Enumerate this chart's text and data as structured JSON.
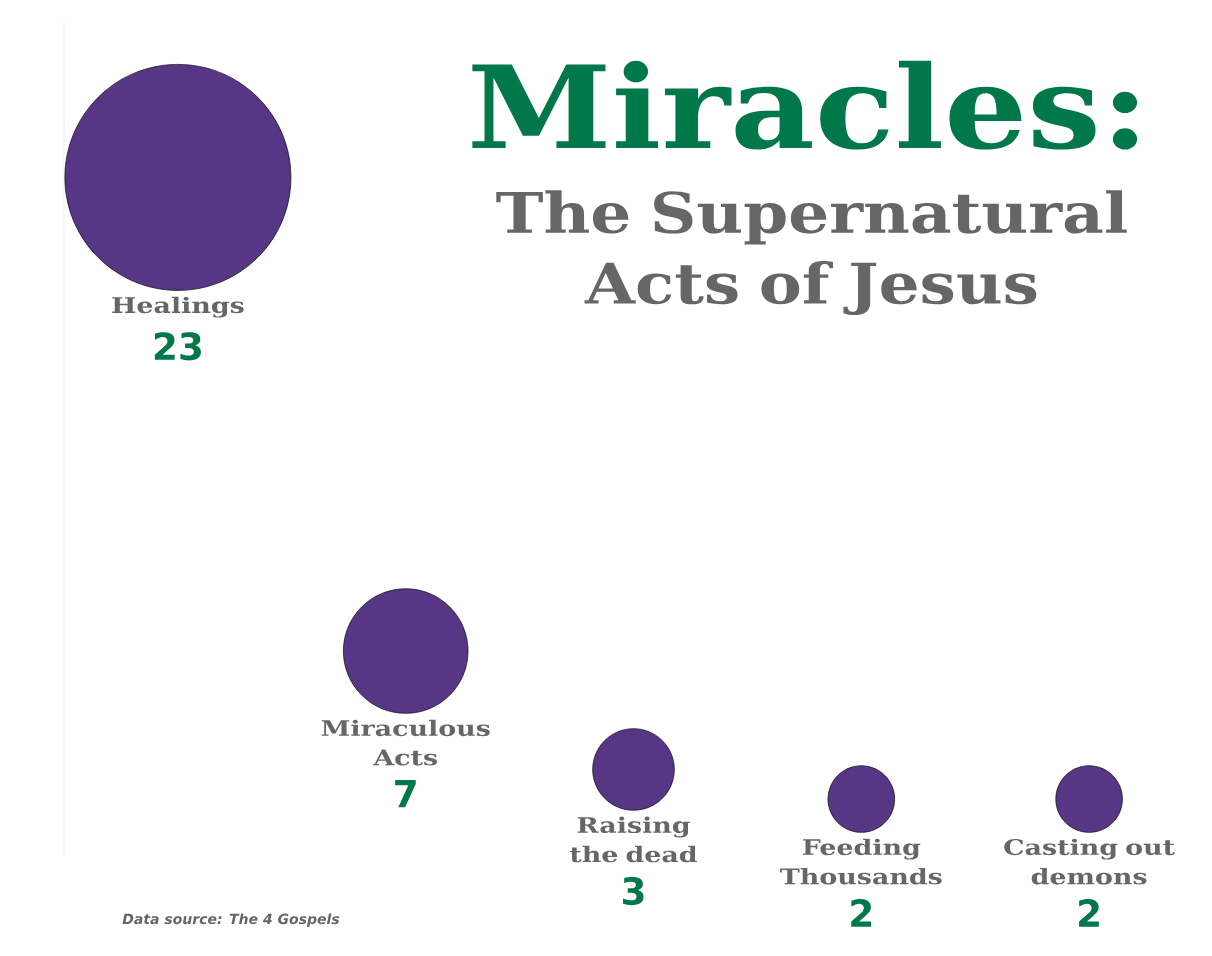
{
  "chart_data": {
    "type": "other",
    "title": "Miracles:",
    "subtitle": "The Supernatural Acts of Jesus",
    "categories": [
      "Healings",
      "Miraculous Acts",
      "Raising the dead",
      "Feeding Thousands",
      "Casting out demons"
    ],
    "values": [
      23,
      7,
      3,
      2,
      2
    ],
    "color": "#573785",
    "data_labels": true,
    "annotations": [
      "Data source: The 4 Gospels"
    ]
  }
}
